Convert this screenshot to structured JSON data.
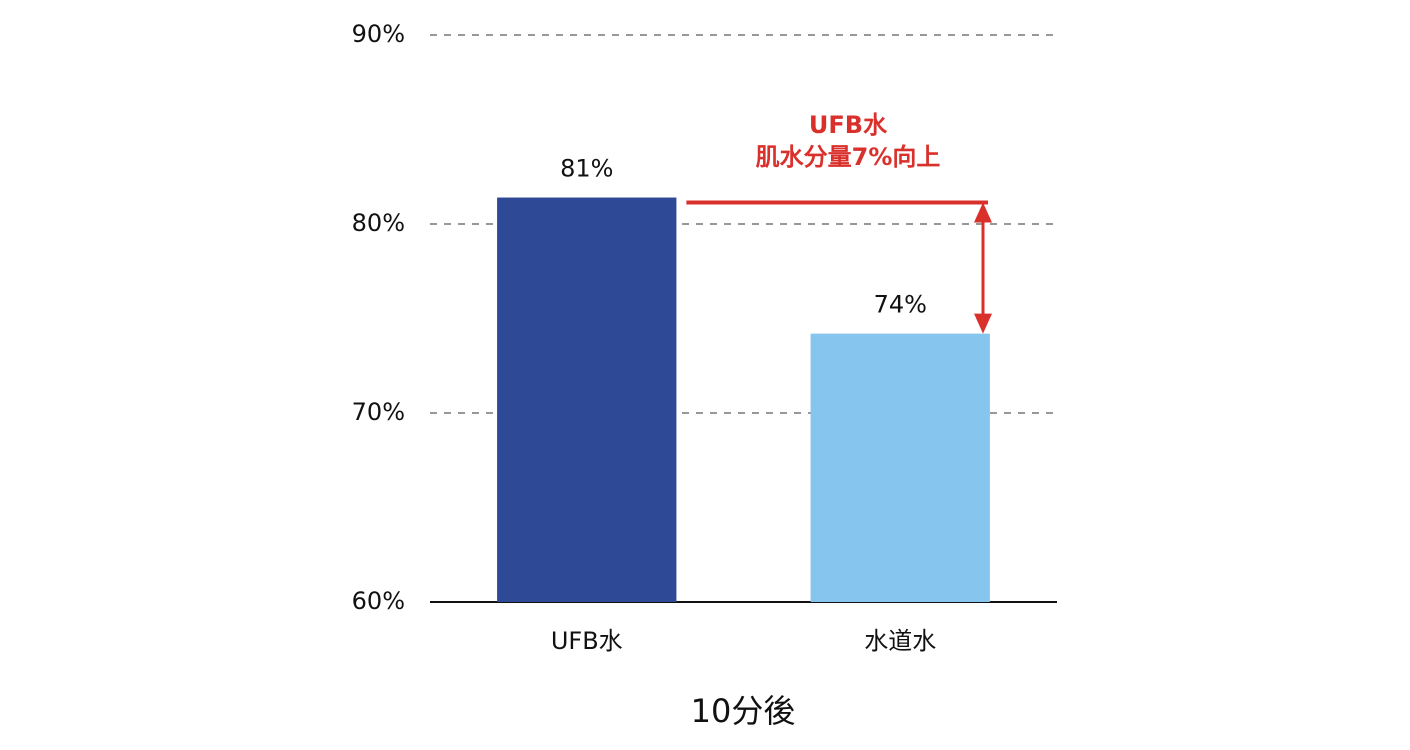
{
  "chart_data": {
    "type": "bar",
    "categories": [
      "UFB水",
      "水道水"
    ],
    "values": [
      81.4,
      74.2
    ],
    "value_labels": [
      "81%",
      "74%"
    ],
    "colors": [
      "#2e4a96",
      "#85c5ee"
    ],
    "xlabel": "10分後",
    "annotation": [
      "UFB水",
      "肌水分量7%向上"
    ],
    "annotation_color": "#d9302c",
    "ylim": [
      60,
      90
    ],
    "yticks": [
      {
        "value": 60,
        "label": "60%"
      },
      {
        "value": 70,
        "label": "70%"
      },
      {
        "value": 80,
        "label": "80%"
      },
      {
        "value": 90,
        "label": "90%"
      }
    ],
    "grid": true
  }
}
